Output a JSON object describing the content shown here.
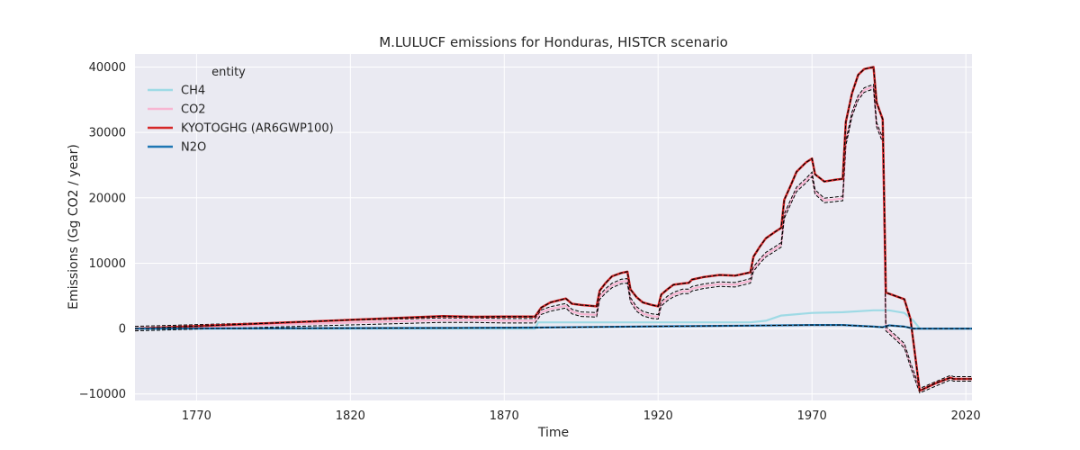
{
  "chart_data": {
    "type": "line",
    "title": "M.LULUCF emissions for Honduras, HISTCR scenario",
    "xlabel": "Time",
    "ylabel": "Emissions (Gg CO2 / year)",
    "xlim": [
      1750,
      2022
    ],
    "ylim": [
      -11000,
      42000
    ],
    "xticks": [
      1770,
      1820,
      1870,
      1920,
      1970,
      2020
    ],
    "yticks": [
      -10000,
      0,
      10000,
      20000,
      30000,
      40000
    ],
    "grid": true,
    "legend": {
      "title": "entity",
      "placement": "top-left"
    },
    "colors": {
      "background": "#eaeaf2",
      "grid": "#ffffff",
      "CH4": "#9edae5",
      "CO2": "#f7b6d2",
      "KYOTOGHG": "#d62728",
      "N2O": "#1f77b4",
      "reference": "#000000"
    },
    "series": [
      {
        "name": "CH4",
        "x": [
          1750,
          1850,
          1880,
          1881,
          1950,
          1955,
          1960,
          1970,
          1980,
          1990,
          1995,
          2000,
          2003,
          2005,
          2010,
          2015,
          2022
        ],
        "y": [
          0,
          0,
          0,
          950,
          950,
          1200,
          2000,
          2400,
          2500,
          2800,
          2800,
          2400,
          1200,
          0,
          0,
          0,
          0
        ]
      },
      {
        "name": "CO2",
        "x": [
          1750,
          1850,
          1860,
          1870,
          1880,
          1882,
          1885,
          1890,
          1892,
          1895,
          1900,
          1901,
          1903,
          1905,
          1908,
          1910,
          1911,
          1913,
          1915,
          1918,
          1920,
          1921,
          1923,
          1925,
          1928,
          1930,
          1931,
          1935,
          1940,
          1945,
          1950,
          1951,
          1953,
          1955,
          1958,
          1960,
          1961,
          1963,
          1965,
          1968,
          1970,
          1971,
          1974,
          1978,
          1980,
          1981,
          1983,
          1985,
          1987,
          1990,
          1991,
          1993,
          1994,
          2000,
          2002,
          2005,
          2010,
          2015,
          2016,
          2022
        ],
        "y": [
          0,
          1300,
          1300,
          1200,
          1200,
          2500,
          3000,
          3500,
          2600,
          2200,
          2100,
          4800,
          5800,
          6600,
          7200,
          7300,
          4400,
          3000,
          2300,
          1900,
          1800,
          3800,
          4600,
          5200,
          5700,
          5700,
          6100,
          6500,
          6800,
          6700,
          7300,
          9100,
          10300,
          11300,
          12200,
          12800,
          17200,
          19300,
          21300,
          22600,
          23600,
          20900,
          19600,
          19800,
          19900,
          28300,
          32800,
          35300,
          36500,
          37000,
          31200,
          28800,
          0,
          -2600,
          -5500,
          -9500,
          -8500,
          -7500,
          -7700,
          -7700
        ]
      },
      {
        "name": "KYOTOGHG (AR6GWP100)",
        "x": [
          1750,
          1850,
          1860,
          1870,
          1880,
          1882,
          1885,
          1890,
          1892,
          1895,
          1900,
          1901,
          1903,
          1905,
          1908,
          1910,
          1911,
          1913,
          1915,
          1918,
          1920,
          1921,
          1923,
          1925,
          1928,
          1930,
          1931,
          1935,
          1940,
          1945,
          1950,
          1951,
          1953,
          1955,
          1958,
          1960,
          1961,
          1963,
          1965,
          1968,
          1970,
          1971,
          1974,
          1978,
          1980,
          1981,
          1983,
          1985,
          1987,
          1990,
          1991,
          1993,
          1994,
          2000,
          2002,
          2005,
          2010,
          2015,
          2016,
          2022
        ],
        "y": [
          0,
          1900,
          1800,
          1850,
          1850,
          3200,
          4000,
          4600,
          3800,
          3600,
          3400,
          5800,
          7000,
          8000,
          8500,
          8700,
          6000,
          4800,
          4000,
          3600,
          3400,
          5200,
          6000,
          6700,
          6900,
          7000,
          7500,
          7900,
          8200,
          8100,
          8600,
          11000,
          12500,
          13800,
          14800,
          15400,
          19700,
          21800,
          24000,
          25400,
          26000,
          23600,
          22500,
          22800,
          22900,
          31600,
          36000,
          38800,
          39700,
          40000,
          34600,
          32000,
          5500,
          4500,
          1500,
          -9500,
          -8400,
          -7500,
          -7700,
          -7700
        ]
      },
      {
        "name": "N2O",
        "x": [
          1750,
          1850,
          1880,
          1900,
          1920,
          1950,
          1970,
          1980,
          1990,
          1993,
          1995,
          2000,
          2003,
          2005,
          2022
        ],
        "y": [
          0,
          100,
          150,
          250,
          350,
          450,
          550,
          550,
          300,
          200,
          500,
          300,
          0,
          0,
          0
        ]
      }
    ]
  }
}
